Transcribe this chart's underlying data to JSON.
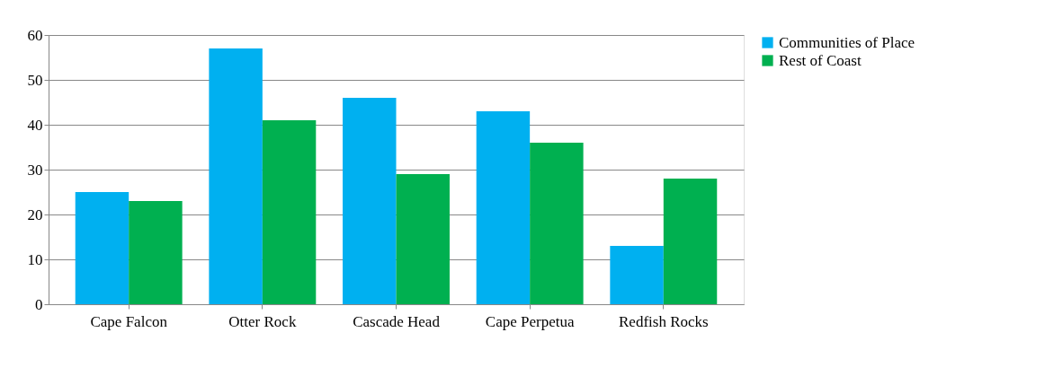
{
  "chart_data": {
    "type": "bar",
    "categories": [
      "Cape Falcon",
      "Otter Rock",
      "Cascade Head",
      "Cape Perpetua",
      "Redfish Rocks"
    ],
    "series": [
      {
        "name": "Communities of Place",
        "color": "#00b0f0",
        "values": [
          25,
          57,
          46,
          43,
          13
        ]
      },
      {
        "name": "Rest of Coast",
        "color": "#00b050",
        "values": [
          23,
          41,
          29,
          36,
          28
        ]
      }
    ],
    "ylim": [
      0,
      60
    ],
    "yticks": [
      0,
      10,
      20,
      30,
      40,
      50,
      60
    ],
    "grid": "y",
    "legend": "right"
  }
}
